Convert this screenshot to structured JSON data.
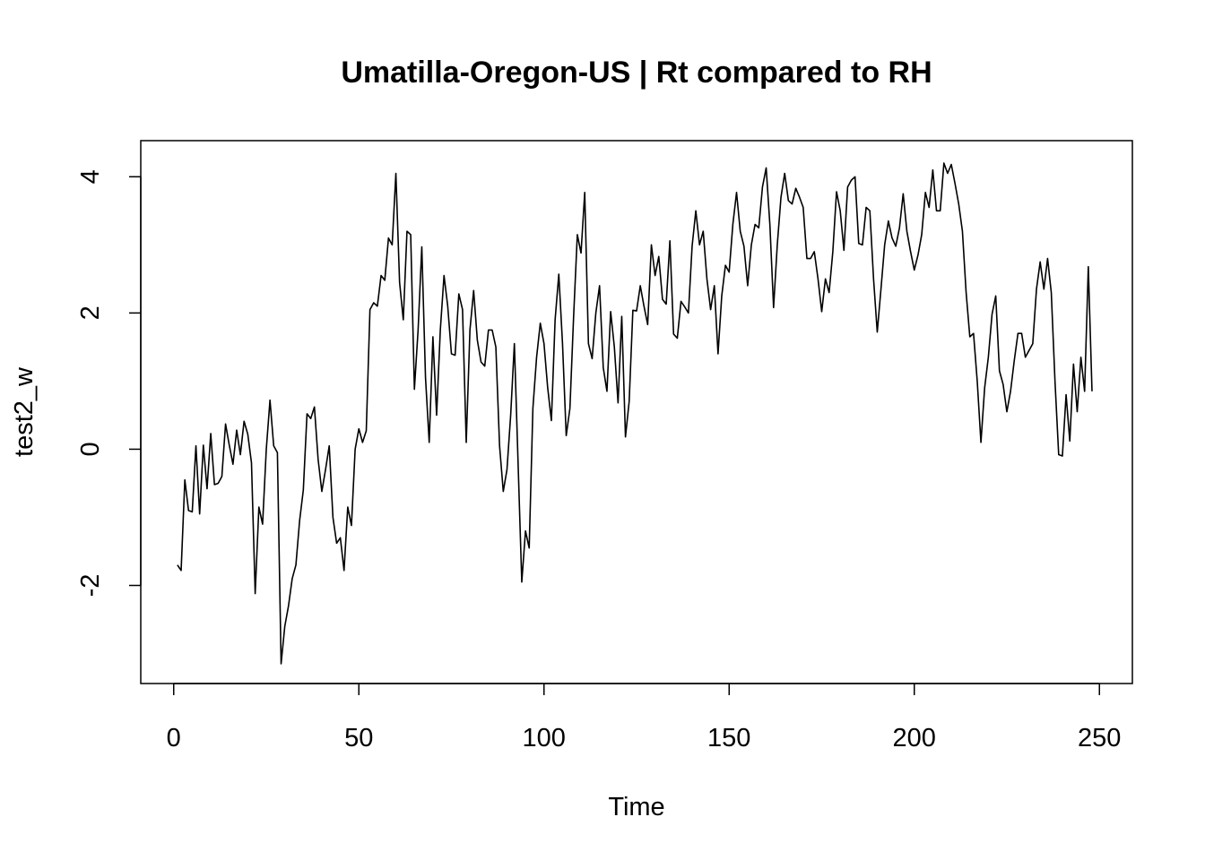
{
  "chart_data": {
    "type": "line",
    "title": "Umatilla-Oregon-US | Rt compared to RH",
    "xlabel": "Time",
    "ylabel": "test2_w",
    "xlim": [
      -8.9,
      258.9
    ],
    "ylim": [
      -3.44,
      4.53
    ],
    "x_ticks": [
      0,
      50,
      100,
      150,
      200,
      250
    ],
    "y_ticks": [
      -2,
      0,
      2,
      4
    ],
    "grid": false,
    "legend": "none",
    "line_color": "#000000",
    "x_start": 1,
    "series": [
      {
        "values": [
          -1.7,
          -1.78,
          -0.45,
          -0.9,
          -0.92,
          0.05,
          -0.95,
          0.06,
          -0.58,
          0.23,
          -0.52,
          -0.5,
          -0.4,
          0.37,
          0.06,
          -0.22,
          0.28,
          -0.08,
          0.41,
          0.22,
          -0.2,
          -2.12,
          -0.85,
          -1.1,
          0.0,
          0.72,
          0.05,
          -0.05,
          -3.15,
          -2.6,
          -2.3,
          -1.9,
          -1.7,
          -1.05,
          -0.6,
          0.52,
          0.45,
          0.62,
          -0.15,
          -0.62,
          -0.3,
          0.05,
          -1.0,
          -1.38,
          -1.3,
          -1.78,
          -0.85,
          -1.12,
          0.0,
          0.3,
          0.1,
          0.27,
          2.05,
          2.15,
          2.1,
          2.55,
          2.48,
          3.1,
          3.0,
          4.05,
          2.45,
          1.9,
          3.2,
          3.15,
          0.88,
          1.75,
          2.97,
          1.05,
          0.1,
          1.65,
          0.5,
          1.75,
          2.55,
          2.1,
          1.4,
          1.38,
          2.28,
          2.05,
          0.1,
          1.75,
          2.33,
          1.6,
          1.28,
          1.22,
          1.75,
          1.75,
          1.5,
          0.05,
          -0.62,
          -0.3,
          0.5,
          1.55,
          -0.2,
          -1.95,
          -1.2,
          -1.45,
          0.6,
          1.35,
          1.85,
          1.55,
          0.9,
          0.42,
          1.9,
          2.57,
          1.55,
          0.2,
          0.6,
          1.95,
          3.15,
          2.88,
          3.77,
          1.55,
          1.33,
          2.0,
          2.4,
          1.2,
          0.85,
          2.02,
          1.5,
          0.68,
          1.95,
          0.18,
          0.7,
          2.04,
          2.03,
          2.4,
          2.1,
          1.83,
          3.0,
          2.55,
          2.83,
          2.2,
          2.13,
          3.06,
          1.69,
          1.63,
          2.17,
          2.09,
          2.0,
          2.98,
          3.5,
          3.0,
          3.2,
          2.5,
          2.05,
          2.4,
          1.4,
          2.25,
          2.7,
          2.6,
          3.3,
          3.77,
          3.2,
          2.98,
          2.4,
          3.0,
          3.3,
          3.25,
          3.85,
          4.13,
          3.3,
          2.08,
          3.0,
          3.7,
          4.05,
          3.65,
          3.6,
          3.83,
          3.7,
          3.55,
          2.8,
          2.8,
          2.9,
          2.5,
          2.02,
          2.5,
          2.3,
          2.9,
          3.78,
          3.5,
          2.92,
          3.85,
          3.95,
          4.0,
          3.02,
          3.0,
          3.55,
          3.5,
          2.5,
          1.72,
          2.35,
          3.0,
          3.35,
          3.1,
          2.98,
          3.25,
          3.75,
          3.2,
          2.9,
          2.63,
          2.85,
          3.15,
          3.77,
          3.55,
          4.1,
          3.5,
          3.5,
          4.2,
          4.05,
          4.18,
          3.9,
          3.6,
          3.2,
          2.3,
          1.65,
          1.7,
          1.0,
          0.1,
          0.9,
          1.35,
          1.98,
          2.25,
          1.15,
          0.95,
          0.55,
          0.85,
          1.3,
          1.7,
          1.7,
          1.35,
          1.45,
          1.55,
          2.35,
          2.75,
          2.35,
          2.8,
          2.3,
          1.0,
          -0.08,
          -0.1,
          0.8,
          0.12,
          1.25,
          0.55,
          1.35,
          0.85,
          2.68,
          0.85
        ]
      }
    ]
  }
}
